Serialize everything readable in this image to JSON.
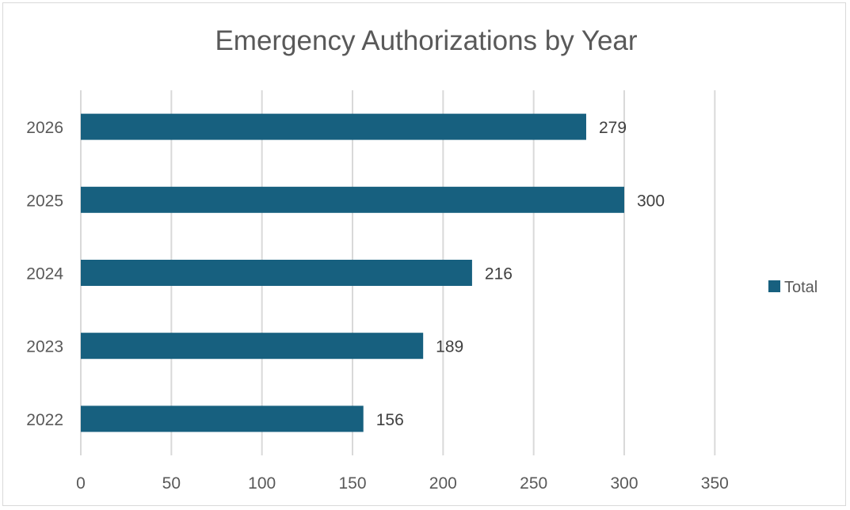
{
  "chart_data": {
    "type": "bar",
    "orientation": "horizontal",
    "title": "Emergency Authorizations by Year",
    "categories": [
      "2022",
      "2023",
      "2024",
      "2025",
      "2026"
    ],
    "series": [
      {
        "name": "Total",
        "values": [
          156,
          189,
          216,
          300,
          279
        ],
        "color": "#17607f"
      }
    ],
    "xlim": [
      0,
      350
    ],
    "x_ticks": [
      0,
      50,
      100,
      150,
      200,
      250,
      300,
      350
    ],
    "data_labels": true,
    "grid": "vertical",
    "legend_position": "right"
  },
  "colors": {
    "bar": "#17607f",
    "gridline": "#d9d9d9",
    "text": "#595959"
  }
}
